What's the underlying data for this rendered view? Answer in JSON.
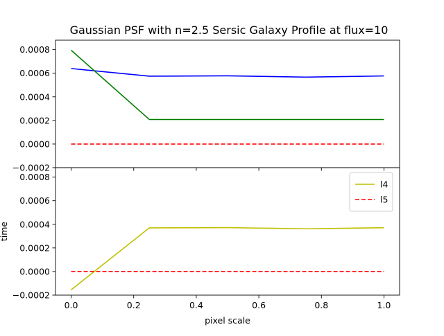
{
  "chart_data": {
    "type": "line",
    "title": "Gaussian PSF with n=2.5 Sersic Galaxy Profile at flux=10",
    "xlabel": "pixel scale",
    "xlim": [
      -0.05,
      1.05
    ],
    "xticks": [
      "0.0",
      "0.2",
      "0.4",
      "0.6",
      "0.8",
      "1.0"
    ],
    "x": [
      0.0,
      0.25,
      0.5,
      0.75,
      1.0
    ],
    "panels": [
      {
        "ylabel": "",
        "ylim": [
          -0.0002,
          0.00088
        ],
        "yticks": [
          "−0.0002",
          "0.0000",
          "0.0002",
          "0.0004",
          "0.0006",
          "0.0008"
        ],
        "legend": null,
        "series": [
          {
            "color": "#0000ff",
            "dash": "solid",
            "values": [
              0.00064,
              0.000575,
              0.000578,
              0.000567,
              0.000577
            ]
          },
          {
            "color": "#008000",
            "dash": "solid",
            "values": [
              0.000795,
              0.000208,
              0.000208,
              0.000208,
              0.000208
            ]
          },
          {
            "color": "#ff0000",
            "dash": "dashed",
            "values": [
              0.0,
              0.0,
              0.0,
              0.0,
              0.0
            ]
          }
        ]
      },
      {
        "ylabel": "time",
        "ylim": [
          -0.0002,
          0.00088
        ],
        "yticks": [
          "−0.0002",
          "0.0000",
          "0.0002",
          "0.0004",
          "0.0006",
          "0.0008"
        ],
        "legend": {
          "placement": "top-right"
        },
        "series": [
          {
            "name": "l4",
            "color": "#bfbf00",
            "dash": "solid",
            "values": [
              -0.000155,
              0.00037,
              0.000372,
              0.000362,
              0.000371
            ]
          },
          {
            "name": "l5",
            "color": "#ff0000",
            "dash": "dashed",
            "values": [
              0.0,
              0.0,
              0.0,
              0.0,
              0.0
            ]
          }
        ]
      }
    ]
  }
}
